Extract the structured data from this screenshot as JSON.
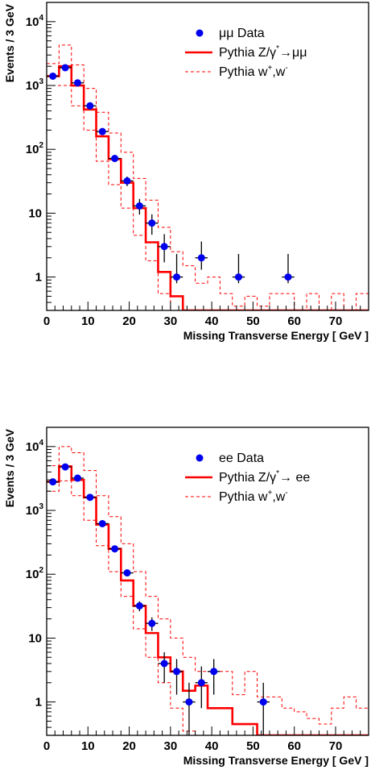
{
  "chart_data": [
    {
      "type": "histogram",
      "xlabel": "Missing Transverse Energy [ GeV ]",
      "ylabel": "Events / 3 GeV",
      "xlim": [
        0,
        78
      ],
      "ylim": [
        0.3,
        20000
      ],
      "yscale": "log",
      "xticks": [
        0,
        10,
        20,
        30,
        40,
        50,
        60,
        70
      ],
      "yticks": [
        {
          "value": 1,
          "base": "1",
          "exp": ""
        },
        {
          "value": 10,
          "base": "10",
          "exp": ""
        },
        {
          "value": 100,
          "base": "10",
          "exp": "2"
        },
        {
          "value": 1000,
          "base": "10",
          "exp": "3"
        },
        {
          "value": 10000,
          "base": "10",
          "exp": "4"
        }
      ],
      "legend": {
        "placement": "top-right",
        "entries": [
          {
            "label": "μμ Data",
            "sup": "",
            "suffix": "",
            "kind": "marker"
          },
          {
            "label": "Pythia Z/γ",
            "sup": "*",
            "suffix": "→μμ",
            "kind": "solid"
          },
          {
            "label": "Pythia w",
            "sup": "+",
            "suffix": ",w",
            "sup2": "-",
            "kind": "dashed"
          }
        ]
      },
      "series": [
        {
          "name": "μμ Data",
          "kind": "points",
          "color": "#0000ee",
          "x": [
            1.5,
            4.5,
            7.5,
            10.5,
            13.5,
            16.5,
            19.5,
            22.5,
            25.5,
            28.5,
            31.5,
            37.5,
            46.5,
            58.5
          ],
          "y": [
            1400,
            1900,
            1100,
            480,
            190,
            72,
            32,
            13,
            7,
            3,
            1,
            2,
            1,
            1
          ],
          "yerr_lo": [
            1363,
            1856,
            1067,
            458,
            176,
            64,
            26.5,
            9.5,
            4.6,
            1.7,
            0.8,
            1.3,
            0.8,
            0.8
          ],
          "yerr_hi": [
            1438,
            1944,
            1134,
            502,
            204,
            80,
            37.5,
            16.7,
            9.6,
            4.7,
            2.3,
            3.6,
            2.3,
            2.3
          ]
        },
        {
          "name": "Pythia Z/γ*→μμ",
          "kind": "step",
          "color": "#ff0000",
          "bins": [
            0,
            3,
            6,
            9,
            12,
            15,
            18,
            21,
            24,
            27,
            30,
            33,
            36,
            78
          ],
          "values": [
            1400,
            2000,
            1000,
            420,
            160,
            70,
            30,
            12,
            3.5,
            1.2,
            0.5,
            0.3,
            0.3
          ]
        },
        {
          "name": "Pythia w+,w- (upper)",
          "kind": "step-dashed",
          "color": "#ff0000",
          "bins": [
            0,
            3,
            6,
            9,
            12,
            15,
            18,
            21,
            24,
            27,
            30,
            33,
            36,
            39,
            42,
            45,
            48,
            51,
            54,
            57,
            60,
            63,
            66,
            69,
            72,
            75,
            78
          ],
          "values": [
            2200,
            4300,
            2100,
            900,
            380,
            180,
            90,
            35,
            16,
            6,
            2.5,
            1.5,
            0.8,
            1.0,
            0.55,
            0.35,
            0.5,
            0.35,
            0.55,
            0.55,
            0.3,
            0.55,
            0.3,
            0.55,
            0.3,
            0.55
          ]
        },
        {
          "name": "Pythia w+,w- (lower)",
          "kind": "step-dashed",
          "color": "#ff0000",
          "bins": [
            0,
            3,
            6,
            9,
            12,
            15,
            18,
            21,
            24,
            27,
            30,
            33,
            78
          ],
          "values": [
            1000,
            1000,
            480,
            200,
            65,
            28,
            12,
            4.5,
            1.8,
            0.55,
            0.3,
            0.3
          ]
        }
      ]
    },
    {
      "type": "histogram",
      "xlabel": "Missing Transverse Energy [ GeV ]",
      "ylabel": "Events / 3 GeV",
      "xlim": [
        0,
        78
      ],
      "ylim": [
        0.3,
        20000
      ],
      "yscale": "log",
      "xticks": [
        0,
        10,
        20,
        30,
        40,
        50,
        60,
        70
      ],
      "yticks": [
        {
          "value": 1,
          "base": "1",
          "exp": ""
        },
        {
          "value": 10,
          "base": "10",
          "exp": ""
        },
        {
          "value": 100,
          "base": "10",
          "exp": "2"
        },
        {
          "value": 1000,
          "base": "10",
          "exp": "3"
        },
        {
          "value": 10000,
          "base": "10",
          "exp": "4"
        }
      ],
      "legend": {
        "placement": "top-right",
        "entries": [
          {
            "label": "ee Data",
            "sup": "",
            "suffix": "",
            "kind": "marker"
          },
          {
            "label": "Pythia Z/γ",
            "sup": "*",
            "suffix": "→ ee",
            "kind": "solid"
          },
          {
            "label": "Pythia w",
            "sup": "+",
            "suffix": ",w",
            "sup2": "-",
            "kind": "dashed"
          }
        ]
      },
      "series": [
        {
          "name": "ee Data",
          "kind": "points",
          "color": "#0000ee",
          "x": [
            1.5,
            4.5,
            7.5,
            10.5,
            13.5,
            16.5,
            19.5,
            22.5,
            25.5,
            28.5,
            31.5,
            34.5,
            37.5,
            40.5,
            52.5
          ],
          "y": [
            2800,
            4800,
            3200,
            1600,
            620,
            250,
            105,
            32,
            17,
            4,
            3,
            1,
            2,
            3,
            1
          ],
          "yerr_lo": [
            2747,
            4731,
            3143,
            1560,
            595,
            234,
            95,
            26.3,
            12.9,
            2.0,
            1.3,
            0.2,
            0.8,
            1.3,
            0.2
          ],
          "yerr_hi": [
            2853,
            4869,
            3257,
            1640,
            645,
            266,
            115,
            37.7,
            21.1,
            6.0,
            4.7,
            2.0,
            3.6,
            4.7,
            2.0
          ]
        },
        {
          "name": "Pythia Z/γ*→ ee",
          "kind": "step",
          "color": "#ff0000",
          "bins": [
            0,
            3,
            6,
            9,
            12,
            15,
            18,
            21,
            24,
            27,
            30,
            33,
            36,
            39,
            42,
            45,
            48,
            51,
            78
          ],
          "values": [
            2800,
            4900,
            3000,
            1600,
            600,
            250,
            80,
            32,
            12,
            5,
            3,
            1.5,
            1.8,
            0.8,
            0.8,
            0.45,
            0.45,
            0.3
          ]
        },
        {
          "name": "Pythia w+,w- (upper)",
          "kind": "step-dashed",
          "color": "#ff0000",
          "bins": [
            0,
            3,
            6,
            9,
            12,
            15,
            18,
            21,
            24,
            27,
            30,
            33,
            36,
            39,
            42,
            45,
            48,
            51,
            54,
            57,
            60,
            63,
            66,
            69,
            72,
            75,
            78
          ],
          "values": [
            5000,
            10000,
            8000,
            4200,
            1700,
            800,
            300,
            110,
            45,
            20,
            10,
            5,
            3,
            3,
            3,
            1.3,
            3,
            1.2,
            1.2,
            0.8,
            0.7,
            0.55,
            0.45,
            0.8,
            1.2,
            0.8
          ]
        },
        {
          "name": "Pythia w+,w- (lower)",
          "kind": "step-dashed",
          "color": "#ff0000",
          "bins": [
            0,
            3,
            6,
            9,
            12,
            15,
            18,
            21,
            24,
            27,
            30,
            33,
            36,
            78
          ],
          "values": [
            2000,
            2900,
            1700,
            700,
            280,
            110,
            45,
            14,
            5,
            2.0,
            0.8,
            0.35,
            0.3
          ]
        }
      ]
    }
  ]
}
